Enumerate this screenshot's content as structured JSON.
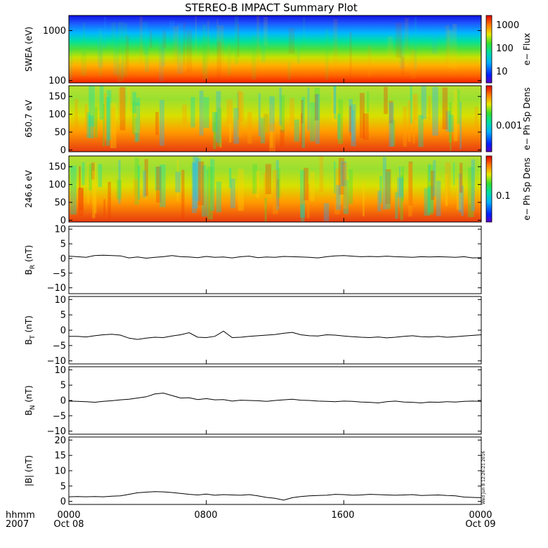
{
  "title": "STEREO-B IMPACT Summary Plot",
  "x_axis": {
    "left_labels": [
      "hhmm",
      "2007"
    ],
    "tick_labels": [
      "0000",
      "0800",
      "1600",
      "0000"
    ],
    "date_labels": [
      "Oct 08",
      "",
      "",
      "Oct 09"
    ],
    "range_hours": [
      0,
      24
    ]
  },
  "stamp": "Wed Jun  8 12:26:21 2016",
  "chart_data": [
    {
      "type": "heatmap",
      "ylabel": "SWEA (eV)",
      "yscale": "log",
      "ylim": [
        90,
        2000
      ],
      "yticks": [
        {
          "value": 100,
          "label": "100"
        },
        {
          "value": 1000,
          "label": "1000"
        }
      ],
      "colorbar_label": "e− Flux",
      "colorbar_ticks": [
        "1000",
        "100",
        "10"
      ]
    },
    {
      "type": "heatmap",
      "ylabel": "650.7 eV",
      "ylim": [
        -5,
        180
      ],
      "yticks": [
        {
          "value": 0,
          "label": "0"
        },
        {
          "value": 50,
          "label": "50"
        },
        {
          "value": 100,
          "label": "100"
        },
        {
          "value": 150,
          "label": "150"
        }
      ],
      "colorbar_label": "e− Ph Sp Dens",
      "colorbar_ticks": [
        "0.001"
      ]
    },
    {
      "type": "heatmap",
      "ylabel": "246.6 eV",
      "ylim": [
        -5,
        180
      ],
      "yticks": [
        {
          "value": 0,
          "label": "0"
        },
        {
          "value": 50,
          "label": "50"
        },
        {
          "value": 100,
          "label": "100"
        },
        {
          "value": 150,
          "label": "150"
        }
      ],
      "colorbar_label": "e− Ph Sp Dens",
      "colorbar_ticks": [
        "0.1"
      ]
    },
    {
      "type": "line",
      "ylabel": "B",
      "ylabel_sub": "R",
      "ylabel_unit": " (nT)",
      "ylim": [
        -12,
        11
      ],
      "yticks": [
        {
          "value": -10,
          "label": "−10"
        },
        {
          "value": -5,
          "label": "−5"
        },
        {
          "value": 0,
          "label": "0"
        },
        {
          "value": 5,
          "label": "5"
        },
        {
          "value": 10,
          "label": "10"
        }
      ],
      "x": [
        0,
        0.5,
        1,
        1.5,
        2,
        2.5,
        3,
        3.5,
        4,
        4.5,
        5,
        5.5,
        6,
        6.5,
        7,
        7.5,
        8,
        8.5,
        9,
        9.5,
        10,
        10.5,
        11,
        11.5,
        12,
        12.5,
        13,
        13.5,
        14,
        14.5,
        15,
        15.5,
        16,
        16.5,
        17,
        17.5,
        18,
        18.5,
        19,
        19.5,
        20,
        20.5,
        21,
        21.5,
        22,
        22.5,
        23,
        23.5,
        24
      ],
      "y": [
        0.8,
        0.6,
        0.4,
        1.0,
        1.1,
        1.0,
        0.9,
        0.2,
        0.5,
        0.1,
        0.4,
        0.6,
        1.0,
        0.6,
        0.5,
        0.3,
        0.7,
        0.4,
        0.5,
        0.2,
        0.6,
        0.8,
        0.3,
        0.5,
        0.4,
        0.7,
        0.6,
        0.5,
        0.4,
        0.2,
        0.6,
        0.9,
        1.0,
        0.8,
        0.6,
        0.7,
        0.6,
        0.8,
        0.6,
        0.5,
        0.4,
        0.6,
        0.5,
        0.6,
        0.5,
        0.4,
        0.6,
        0.2,
        0.3
      ]
    },
    {
      "type": "line",
      "ylabel": "B",
      "ylabel_sub": "T",
      "ylabel_unit": " (nT)",
      "ylim": [
        -11,
        11
      ],
      "yticks": [
        {
          "value": -10,
          "label": "−10"
        },
        {
          "value": -5,
          "label": "−5"
        },
        {
          "value": 0,
          "label": "0"
        },
        {
          "value": 5,
          "label": "5"
        },
        {
          "value": 10,
          "label": "10"
        }
      ],
      "x": [
        0,
        0.5,
        1,
        1.5,
        2,
        2.5,
        3,
        3.5,
        4,
        4.5,
        5,
        5.5,
        6,
        6.5,
        7,
        7.5,
        8,
        8.5,
        9,
        9.5,
        10,
        10.5,
        11,
        11.5,
        12,
        12.5,
        13,
        13.5,
        14,
        14.5,
        15,
        15.5,
        16,
        16.5,
        17,
        17.5,
        18,
        18.5,
        19,
        19.5,
        20,
        20.5,
        21,
        21.5,
        22,
        22.5,
        23,
        23.5,
        24
      ],
      "y": [
        -2.0,
        -2.0,
        -2.2,
        -1.8,
        -1.5,
        -1.3,
        -1.6,
        -2.6,
        -3.0,
        -2.6,
        -2.3,
        -2.4,
        -1.9,
        -1.5,
        -0.8,
        -2.3,
        -2.4,
        -2.0,
        -0.3,
        -2.4,
        -2.3,
        -2.0,
        -1.8,
        -1.6,
        -1.4,
        -1.0,
        -0.7,
        -1.5,
        -1.8,
        -1.9,
        -1.5,
        -1.6,
        -1.9,
        -2.1,
        -2.3,
        -2.4,
        -2.2,
        -2.5,
        -2.3,
        -2.0,
        -1.8,
        -2.1,
        -2.2,
        -2.0,
        -2.3,
        -2.1,
        -1.9,
        -1.7,
        -1.5
      ]
    },
    {
      "type": "line",
      "ylabel": "B",
      "ylabel_sub": "N",
      "ylabel_unit": " (nT)",
      "ylim": [
        -11,
        11
      ],
      "yticks": [
        {
          "value": -10,
          "label": "−10"
        },
        {
          "value": -5,
          "label": "−5"
        },
        {
          "value": 0,
          "label": "0"
        },
        {
          "value": 5,
          "label": "5"
        },
        {
          "value": 10,
          "label": "10"
        }
      ],
      "x": [
        0,
        0.5,
        1,
        1.5,
        2,
        2.5,
        3,
        3.5,
        4,
        4.5,
        5,
        5.5,
        6,
        6.5,
        7,
        7.5,
        8,
        8.5,
        9,
        9.5,
        10,
        10.5,
        11,
        11.5,
        12,
        12.5,
        13,
        13.5,
        14,
        14.5,
        15,
        15.5,
        16,
        16.5,
        17,
        17.5,
        18,
        18.5,
        19,
        19.5,
        20,
        20.5,
        21,
        21.5,
        22,
        22.5,
        23,
        23.5,
        24
      ],
      "y": [
        -0.2,
        -0.3,
        -0.4,
        -0.6,
        -0.3,
        -0.1,
        0.2,
        0.4,
        0.8,
        1.2,
        2.1,
        2.4,
        1.6,
        0.8,
        0.9,
        0.3,
        0.6,
        0.2,
        0.3,
        -0.2,
        0.1,
        0.0,
        -0.1,
        -0.3,
        0.0,
        0.2,
        0.4,
        0.1,
        0.0,
        -0.2,
        -0.3,
        -0.4,
        -0.2,
        -0.3,
        -0.5,
        -0.6,
        -0.8,
        -0.4,
        -0.2,
        -0.5,
        -0.6,
        -0.8,
        -0.5,
        -0.6,
        -0.4,
        -0.5,
        -0.3,
        -0.2,
        -0.3
      ]
    },
    {
      "type": "line",
      "ylabel": "|B|",
      "ylabel_sub": "",
      "ylabel_unit": " (nT)",
      "ylim": [
        -1,
        21
      ],
      "yticks": [
        {
          "value": 0,
          "label": "0"
        },
        {
          "value": 5,
          "label": "5"
        },
        {
          "value": 10,
          "label": "10"
        },
        {
          "value": 15,
          "label": "15"
        },
        {
          "value": 20,
          "label": "20"
        }
      ],
      "x": [
        0,
        0.5,
        1,
        1.5,
        2,
        2.5,
        3,
        3.5,
        4,
        4.5,
        5,
        5.5,
        6,
        6.5,
        7,
        7.5,
        8,
        8.5,
        9,
        9.5,
        10,
        10.5,
        11,
        11.5,
        12,
        12.5,
        13,
        13.5,
        14,
        14.5,
        15,
        15.5,
        16,
        16.5,
        17,
        17.5,
        18,
        18.5,
        19,
        19.5,
        20,
        20.5,
        21,
        21.5,
        22,
        22.5,
        23,
        23.5,
        24
      ],
      "y": [
        1.5,
        1.6,
        1.5,
        1.6,
        1.5,
        1.7,
        1.8,
        2.3,
        2.8,
        3.0,
        3.2,
        3.1,
        2.9,
        2.6,
        2.3,
        2.1,
        2.4,
        2.0,
        2.2,
        2.1,
        2.0,
        2.2,
        1.8,
        1.3,
        1.0,
        0.4,
        1.2,
        1.6,
        1.8,
        1.9,
        2.0,
        2.3,
        2.2,
        2.0,
        2.1,
        2.3,
        2.2,
        2.1,
        2.0,
        2.1,
        2.2,
        1.9,
        2.0,
        2.1,
        1.9,
        1.8,
        1.4,
        1.3,
        1.2
      ]
    }
  ]
}
